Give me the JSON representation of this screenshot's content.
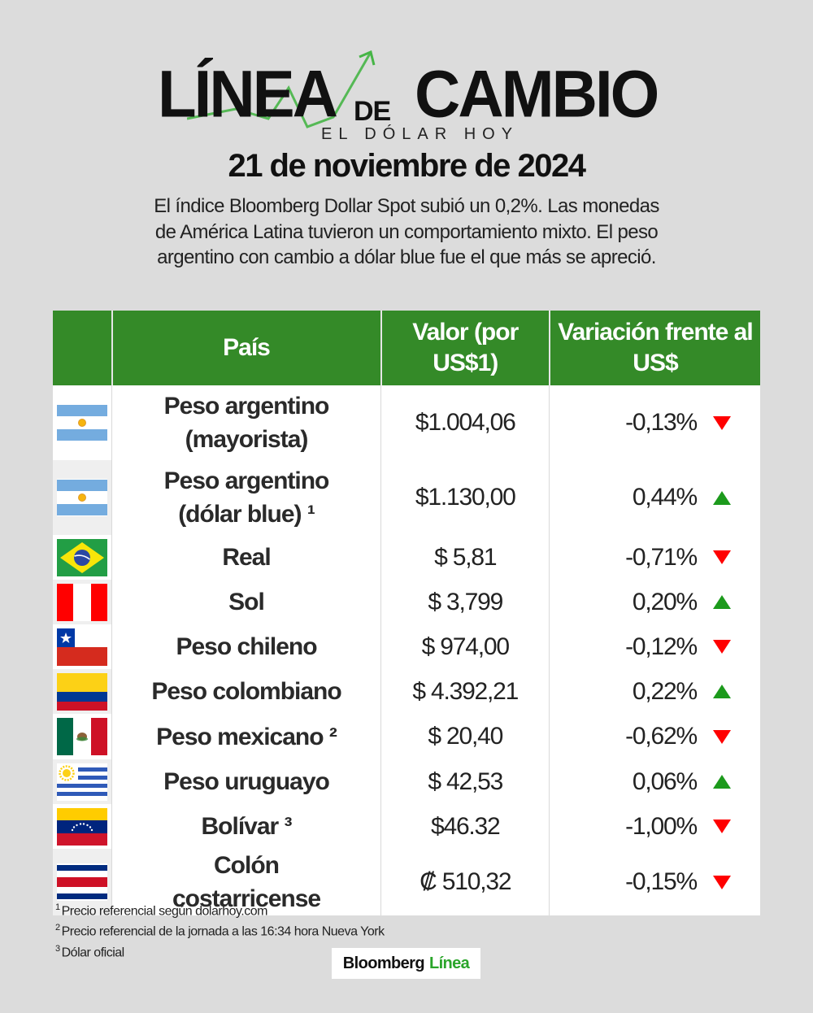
{
  "header": {
    "logo_word1": "LÍNEA",
    "logo_de": "DE",
    "logo_word2": "CAMBIO",
    "logo_subtitle": "EL DÓLAR HOY",
    "date": "21 de noviembre de 2024",
    "summary": "El índice Bloomberg Dollar Spot subió un 0,2%. Las monedas de América Latina tuvieron un comportamiento mixto. El peso argentino con cambio a dólar blue fue el que más se apreció."
  },
  "table": {
    "columns": [
      "",
      "País",
      "Valor (por US$1)",
      "Variación frente al US$"
    ],
    "rows": [
      {
        "flag": "argentina",
        "country": "Peso argentino (mayorista)",
        "value": "$1.004,06",
        "change": "-0,13%",
        "direction": "down"
      },
      {
        "flag": "argentina",
        "country": "Peso argentino (dólar blue) ¹",
        "value": "$1.130,00",
        "change": "0,44%",
        "direction": "up"
      },
      {
        "flag": "brazil",
        "country": "Real",
        "value": "$ 5,81",
        "change": "-0,71%",
        "direction": "down"
      },
      {
        "flag": "peru",
        "country": "Sol",
        "value": "$ 3,799",
        "change": "0,20%",
        "direction": "up"
      },
      {
        "flag": "chile",
        "country": "Peso chileno",
        "value": "$ 974,00",
        "change": "-0,12%",
        "direction": "down"
      },
      {
        "flag": "colombia",
        "country": "Peso colombiano",
        "value": "$ 4.392,21",
        "change": "0,22%",
        "direction": "up"
      },
      {
        "flag": "mexico",
        "country": "Peso mexicano ²",
        "value": "$ 20,40",
        "change": "-0,62%",
        "direction": "down"
      },
      {
        "flag": "uruguay",
        "country": "Peso uruguayo",
        "value": "$ 42,53",
        "change": "0,06%",
        "direction": "up"
      },
      {
        "flag": "venezuela",
        "country": "Bolívar ³",
        "value": "$46.32",
        "change": "-1,00%",
        "direction": "down"
      },
      {
        "flag": "costa-rica",
        "country": "Colón costarricense",
        "value": "₡ 510,32",
        "change": "-0,15%",
        "direction": "down"
      }
    ]
  },
  "footnotes": [
    {
      "mark": "1",
      "text": "Precio referencial según dolarhoy.com"
    },
    {
      "mark": "2",
      "text": "Precio referencial de la jornada a las 16:34 hora Nueva York"
    },
    {
      "mark": "3",
      "text": "Dólar oficial"
    }
  ],
  "brand": {
    "part1": "Bloomberg",
    "part2": "Línea"
  },
  "colors": {
    "header_green": "#348a28",
    "up": "#1c9a1c",
    "down": "#ff0000",
    "background": "#dcdcdc",
    "brand_green": "#2aa52a"
  },
  "chart_data": {
    "type": "table",
    "title": "Línea de Cambio — El dólar hoy — 21 de noviembre de 2024",
    "columns": [
      "País",
      "Valor (por US$1)",
      "Variación frente al US$"
    ],
    "rows": [
      [
        "Peso argentino (mayorista)",
        "$1.004,06",
        "-0,13%"
      ],
      [
        "Peso argentino (dólar blue) ¹",
        "$1.130,00",
        "0,44%"
      ],
      [
        "Real",
        "$ 5,81",
        "-0,71%"
      ],
      [
        "Sol",
        "$ 3,799",
        "0,20%"
      ],
      [
        "Peso chileno",
        "$ 974,00",
        "-0,12%"
      ],
      [
        "Peso colombiano",
        "$ 4.392,21",
        "0,22%"
      ],
      [
        "Peso mexicano ²",
        "$ 20,40",
        "-0,62%"
      ],
      [
        "Peso uruguayo",
        "$ 42,53",
        "0,06%"
      ],
      [
        "Bolívar ³",
        "$46.32",
        "-1,00%"
      ],
      [
        "Colón costarricense",
        "₡ 510,32",
        "-0,15%"
      ]
    ],
    "values": [
      1004.06,
      1130.0,
      5.81,
      3.799,
      974.0,
      4392.21,
      20.4,
      42.53,
      46.32,
      510.32
    ],
    "changes_pct": [
      -0.13,
      0.44,
      -0.71,
      0.2,
      -0.12,
      0.22,
      -0.62,
      0.06,
      -1.0,
      -0.15
    ]
  }
}
